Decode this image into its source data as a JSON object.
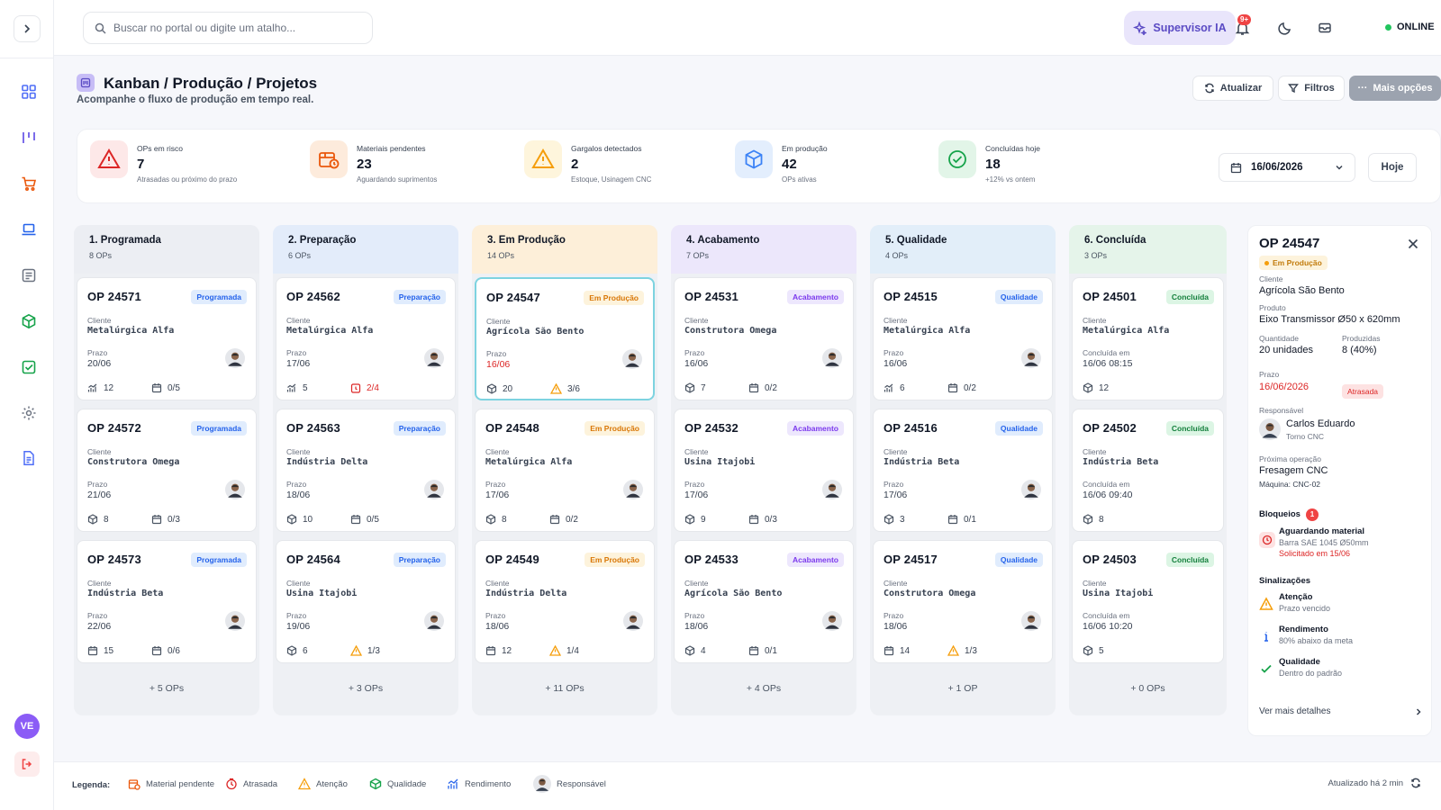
{
  "topbar": {
    "search_placeholder": "Buscar no portal ou digite um atalho...",
    "supervisor_label": "Supervisor IA",
    "notif_badge": "9+",
    "status": "ONLINE"
  },
  "header": {
    "title": "Kanban / Produção / Projetos",
    "subtitle": "Acompanhe o fluxo de produção em tempo real.",
    "btn_refresh": "Atualizar",
    "btn_filters": "Filtros",
    "btn_more": "Mais opções"
  },
  "kpis": [
    {
      "label": "OPs em risco",
      "value": "7",
      "sub": "Atrasadas ou próximo do prazo",
      "icon": "alert-triangle-icon",
      "color": "#dc2626"
    },
    {
      "label": "Materiais pendentes",
      "value": "23",
      "sub": "Aguardando suprimentos",
      "icon": "material-box-icon",
      "color": "#ea580c"
    },
    {
      "label": "Gargalos detectados",
      "value": "2",
      "sub": "Estoque, Usinagem CNC",
      "icon": "warning-icon",
      "color": "#f59e0b"
    },
    {
      "label": "Em produção",
      "value": "42",
      "sub": "OPs ativas",
      "icon": "cube-icon",
      "color": "#3b82f6"
    },
    {
      "label": "Concluídas hoje",
      "value": "18",
      "sub": "+12% vs ontem",
      "icon": "check-circle-icon",
      "color": "#16a34a"
    }
  ],
  "date": {
    "value": "16/06/2026",
    "today_label": "Hoje"
  },
  "columns": [
    {
      "title": "1. Programada",
      "count": "8 OPs",
      "more": "+ 5 OPs",
      "head_bg": "#eceef3",
      "badge_bg": "#e0ecfd",
      "badge_fg": "#2563eb",
      "cards": [
        {
          "op": "OP  24571",
          "badge": "Programada",
          "client_label": "Cliente",
          "client": "Metalúrgica Alfa",
          "date_label": "Prazo",
          "date": "20/06",
          "m1_icon": "chart-icon",
          "m1": "12",
          "m2_icon": "calendar-icon",
          "m2": "0/5"
        },
        {
          "op": "OP  24572",
          "badge": "Programada",
          "client_label": "Cliente",
          "client": "Construtora Omega",
          "date_label": "Prazo",
          "date": "21/06",
          "m1_icon": "cube-icon",
          "m1": "8",
          "m2_icon": "calendar-icon",
          "m2": "0/3"
        },
        {
          "op": "OP  24573",
          "badge": "Programada",
          "client_label": "Cliente",
          "client": "Indústria Beta",
          "date_label": "Prazo",
          "date": "22/06",
          "m1_icon": "calendar-icon",
          "m1": "15",
          "m2_icon": "calendar-icon",
          "m2": "0/6"
        }
      ]
    },
    {
      "title": "2. Preparação",
      "count": "6 OPs",
      "more": "+ 3 OPs",
      "head_bg": "#e3ecfa",
      "badge_bg": "#e0ecfd",
      "badge_fg": "#2563eb",
      "cards": [
        {
          "op": "OP  24562",
          "badge": "Preparação",
          "client_label": "Cliente",
          "client": "Metalúrgica Alfa",
          "date_label": "Prazo",
          "date": "17/06",
          "m1_icon": "chart-icon",
          "m1": "5",
          "m2_icon": "clock-red-icon",
          "m2": "2/4",
          "m2_red": true
        },
        {
          "op": "OP  24563",
          "badge": "Preparação",
          "client_label": "Cliente",
          "client": "Indústria Delta",
          "date_label": "Prazo",
          "date": "18/06",
          "m1_icon": "cube-icon",
          "m1": "10",
          "m2_icon": "calendar-icon",
          "m2": "0/5"
        },
        {
          "op": "OP  24564",
          "badge": "Preparação",
          "client_label": "Cliente",
          "client": "Usina Itajobi",
          "date_label": "Prazo",
          "date": "19/06",
          "m1_icon": "cube-icon",
          "m1": "6",
          "m2_icon": "warning-icon",
          "m2": "1/3"
        }
      ]
    },
    {
      "title": "3. Em Produção",
      "count": "14 OPs",
      "more": "+ 11 OPs",
      "head_bg": "#fdefd9",
      "badge_bg": "#fdf3dc",
      "badge_fg": "#d97706",
      "cards": [
        {
          "op": "OP  24547",
          "badge": "Em Produção",
          "client_label": "Cliente",
          "client": "Agrícola São Bento",
          "date_label": "Prazo",
          "date": "16/06",
          "late": true,
          "selected": true,
          "m1_icon": "cube-icon",
          "m1": "20",
          "m2_icon": "warning-icon",
          "m2": "3/6"
        },
        {
          "op": "OP  24548",
          "badge": "Em Produção",
          "client_label": "Cliente",
          "client": "Metalúrgica Alfa",
          "date_label": "Prazo",
          "date": "17/06",
          "m1_icon": "cube-icon",
          "m1": "8",
          "m2_icon": "calendar-icon",
          "m2": "0/2"
        },
        {
          "op": "OP  24549",
          "badge": "Em Produção",
          "client_label": "Cliente",
          "client": "Indústria Delta",
          "date_label": "Prazo",
          "date": "18/06",
          "m1_icon": "calendar-icon",
          "m1": "12",
          "m2_icon": "warning-icon",
          "m2": "1/4"
        }
      ]
    },
    {
      "title": "4. Acabamento",
      "count": "7 OPs",
      "more": "+ 4 OPs",
      "head_bg": "#ece7fb",
      "badge_bg": "#ede7fd",
      "badge_fg": "#7c3aed",
      "cards": [
        {
          "op": "OP  24531",
          "badge": "Acabamento",
          "client_label": "Cliente",
          "client": "Construtora Omega",
          "date_label": "Prazo",
          "date": "16/06",
          "m1_icon": "cube-icon",
          "m1": "7",
          "m2_icon": "calendar-icon",
          "m2": "0/2"
        },
        {
          "op": "OP  24532",
          "badge": "Acabamento",
          "client_label": "Cliente",
          "client": "Usina Itajobi",
          "date_label": "Prazo",
          "date": "17/06",
          "m1_icon": "cube-icon",
          "m1": "9",
          "m2_icon": "calendar-icon",
          "m2": "0/3"
        },
        {
          "op": "OP  24533",
          "badge": "Acabamento",
          "client_label": "Cliente",
          "client": "Agrícola São Bento",
          "date_label": "Prazo",
          "date": "18/06",
          "m1_icon": "cube-icon",
          "m1": "4",
          "m2_icon": "calendar-icon",
          "m2": "0/1"
        }
      ]
    },
    {
      "title": "5. Qualidade",
      "count": "4 OPs",
      "more": "+ 1 OP",
      "head_bg": "#e2eef9",
      "badge_bg": "#e0ecfd",
      "badge_fg": "#2563eb",
      "cards": [
        {
          "op": "OP  24515",
          "badge": "Qualidade",
          "client_label": "Cliente",
          "client": "Metalúrgica Alfa",
          "date_label": "Prazo",
          "date": "16/06",
          "m1_icon": "chart-icon",
          "m1": "6",
          "m2_icon": "calendar-icon",
          "m2": "0/2"
        },
        {
          "op": "OP  24516",
          "badge": "Qualidade",
          "client_label": "Cliente",
          "client": "Indústria Beta",
          "date_label": "Prazo",
          "date": "17/06",
          "m1_icon": "cube-icon",
          "m1": "3",
          "m2_icon": "calendar-icon",
          "m2": "0/1"
        },
        {
          "op": "OP  24517",
          "badge": "Qualidade",
          "client_label": "Cliente",
          "client": "Construtora Omega",
          "date_label": "Prazo",
          "date": "18/06",
          "m1_icon": "calendar-icon",
          "m1": "14",
          "m2_icon": "warning-icon",
          "m2": "1/3"
        }
      ]
    },
    {
      "title": "6. Concluída",
      "count": "3 OPs",
      "more": "+ 0 OPs",
      "head_bg": "#e5f4ea",
      "badge_bg": "#dcf5e4",
      "badge_fg": "#15803d",
      "cards": [
        {
          "op": "OP  24501",
          "badge": "Concluída",
          "client_label": "Cliente",
          "client": "Metalúrgica Alfa",
          "date_label": "Concluída em",
          "date": "16/06 08:15",
          "m1_icon": "cube-icon",
          "m1": "12"
        },
        {
          "op": "OP  24502",
          "badge": "Concluída",
          "client_label": "Cliente",
          "client": "Indústria Beta",
          "date_label": "Concluída em",
          "date": "16/06 09:40",
          "m1_icon": "cube-icon",
          "m1": "8"
        },
        {
          "op": "OP  24503",
          "badge": "Concluída",
          "client_label": "Cliente",
          "client": "Usina Itajobi",
          "date_label": "Concluída em",
          "date": "16/06 10:20",
          "m1_icon": "cube-icon",
          "m1": "5"
        }
      ]
    }
  ],
  "detail": {
    "op": "OP 24547",
    "status": "Em Produção",
    "client_label": "Cliente",
    "client": "Agrícola São Bento",
    "product_label": "Produto",
    "product": "Eixo Transmissor Ø50 x 620mm",
    "qty_label": "Quantidade",
    "qty": "20 unidades",
    "produced_label": "Produzidas",
    "produced": "8 (40%)",
    "deadline_label": "Prazo",
    "deadline": "16/06/2026",
    "late_label": "Atrasada",
    "resp_label": "Responsável",
    "resp_name": "Carlos Eduardo",
    "resp_role": "Torno CNC",
    "next_label": "Próxima operação",
    "next_op": "Fresagem CNC",
    "next_machine": "Máquina: CNC-02",
    "blocks_title": "Bloqueios",
    "blocks_count": "1",
    "block_title": "Aguardando material",
    "block_sub": "Barra SAE 1045 Ø50mm",
    "block_date": "Solicitado em 15/06",
    "signals_title": "Sinalizações",
    "signals": [
      {
        "title": "Atenção",
        "sub": "Prazo vencido",
        "icon": "warning-icon"
      },
      {
        "title": "Rendimento",
        "sub": "80% abaixo da meta",
        "icon": "info-icon"
      },
      {
        "title": "Qualidade",
        "sub": "Dentro do padrão",
        "icon": "check-icon"
      }
    ],
    "more_link": "Ver mais detalhes"
  },
  "footer": {
    "legend_title": "Legenda:",
    "legend": [
      {
        "label": "Material pendente",
        "icon": "material-box-icon"
      },
      {
        "label": "Atrasada",
        "icon": "clock-red-icon"
      },
      {
        "label": "Atenção",
        "icon": "warning-icon"
      },
      {
        "label": "Qualidade",
        "icon": "quality-cube-icon"
      },
      {
        "label": "Rendimento",
        "icon": "chart-icon"
      },
      {
        "label": "Responsável",
        "icon": "person-avatar-icon"
      }
    ],
    "updated": "Atualizado há 2 min"
  },
  "sidebar": {
    "user_initials": "VE",
    "items": [
      "dashboard-icon",
      "kanban-icon",
      "cart-icon",
      "laptop-icon",
      "reports-icon",
      "cube-icon",
      "checklist-icon",
      "settings-icon",
      "document-icon"
    ]
  }
}
